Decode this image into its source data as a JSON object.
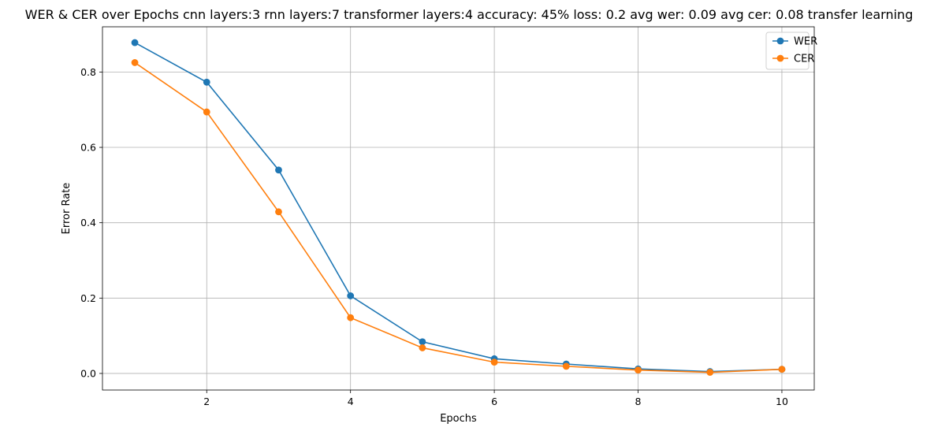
{
  "chart_data": {
    "type": "line",
    "title": "WER & CER over Epochs cnn layers:3 rnn layers:7 transformer layers:4 accuracy: 45% loss: 0.2 avg wer: 0.09 avg cer: 0.08 transfer learning",
    "xlabel": "Epochs",
    "ylabel": "Error Rate",
    "x": [
      1,
      2,
      3,
      4,
      5,
      6,
      7,
      8,
      9,
      10
    ],
    "xlim": [
      0.55,
      10.45
    ],
    "ylim": [
      -0.044,
      0.92
    ],
    "xticks": [
      2,
      4,
      6,
      8,
      10
    ],
    "yticks": [
      0.0,
      0.2,
      0.4,
      0.6,
      0.8
    ],
    "xtick_labels": [
      "2",
      "4",
      "6",
      "8",
      "10"
    ],
    "ytick_labels": [
      "0.0",
      "0.2",
      "0.4",
      "0.6",
      "0.8"
    ],
    "grid": true,
    "legend_position": "top-right",
    "series": [
      {
        "name": "WER",
        "color": "#1f77b4",
        "values": [
          0.878,
          0.773,
          0.54,
          0.206,
          0.084,
          0.039,
          0.025,
          0.012,
          0.005,
          0.011
        ]
      },
      {
        "name": "CER",
        "color": "#ff7f0e",
        "values": [
          0.825,
          0.694,
          0.429,
          0.148,
          0.068,
          0.03,
          0.019,
          0.009,
          0.003,
          0.011
        ]
      }
    ]
  }
}
